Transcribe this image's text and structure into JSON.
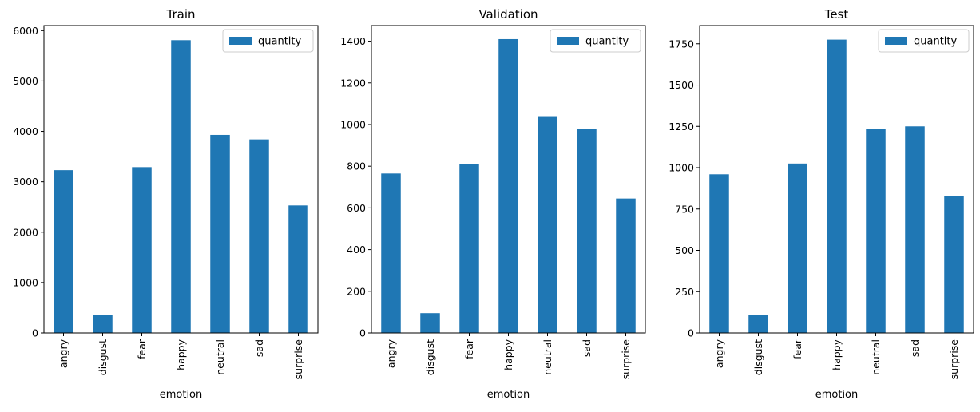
{
  "chart_data": [
    {
      "type": "bar",
      "title": "Train",
      "xlabel": "emotion",
      "ylabel": "",
      "categories": [
        "angry",
        "disgust",
        "fear",
        "happy",
        "neutral",
        "sad",
        "surprise"
      ],
      "series": [
        {
          "name": "quantity",
          "values": [
            3230,
            350,
            3290,
            5810,
            3930,
            3840,
            2530
          ]
        }
      ],
      "ylim": [
        0,
        6100
      ],
      "yticks": [
        0,
        1000,
        2000,
        3000,
        4000,
        5000,
        6000
      ],
      "legend": "top-right",
      "grid": false,
      "color": "#1f77b4"
    },
    {
      "type": "bar",
      "title": "Validation",
      "xlabel": "emotion",
      "ylabel": "",
      "categories": [
        "angry",
        "disgust",
        "fear",
        "happy",
        "neutral",
        "sad",
        "surprise"
      ],
      "series": [
        {
          "name": "quantity",
          "values": [
            765,
            95,
            810,
            1410,
            1040,
            980,
            645
          ]
        }
      ],
      "ylim": [
        0,
        1475
      ],
      "yticks": [
        0,
        200,
        400,
        600,
        800,
        1000,
        1200,
        1400
      ],
      "legend": "top-right",
      "grid": false,
      "color": "#1f77b4"
    },
    {
      "type": "bar",
      "title": "Test",
      "xlabel": "emotion",
      "ylabel": "",
      "categories": [
        "angry",
        "disgust",
        "fear",
        "happy",
        "neutral",
        "sad",
        "surprise"
      ],
      "series": [
        {
          "name": "quantity",
          "values": [
            960,
            110,
            1025,
            1775,
            1235,
            1250,
            830
          ]
        }
      ],
      "ylim": [
        0,
        1860
      ],
      "yticks": [
        0,
        250,
        500,
        750,
        1000,
        1250,
        1500,
        1750
      ],
      "legend": "top-right",
      "grid": false,
      "color": "#1f77b4"
    }
  ]
}
